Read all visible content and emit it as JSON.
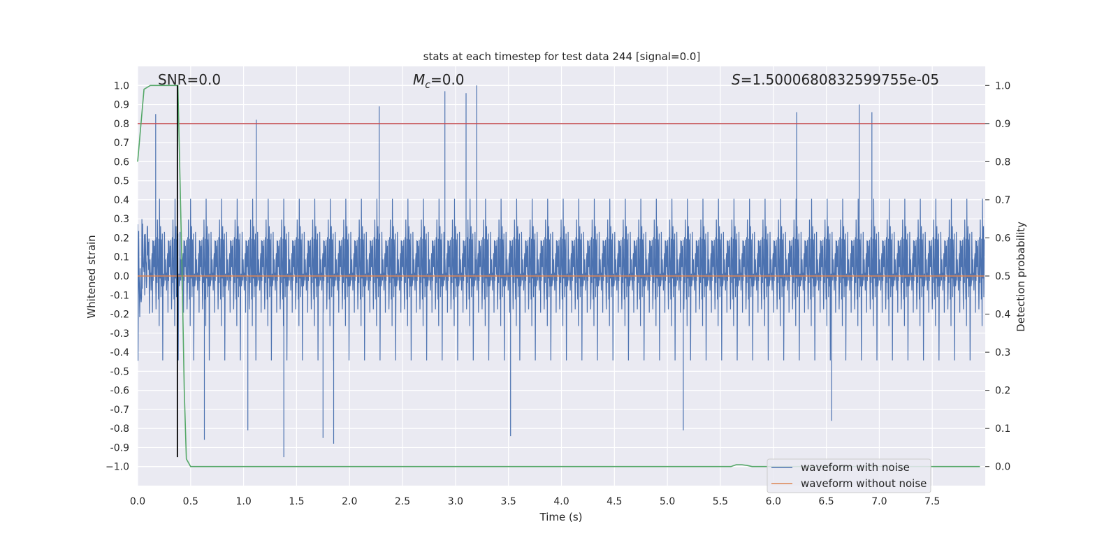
{
  "chart_data": {
    "type": "line",
    "title": "stats at each timestep for test data 244 [signal=0.0]",
    "xlabel": "Time (s)",
    "ylabel": "Whitened strain",
    "y2label": "Detection probability",
    "xlim": [
      0.0,
      8.0
    ],
    "ylim": [
      -1.1,
      1.1
    ],
    "y2lim": [
      -0.05,
      1.05
    ],
    "x_ticks": [
      0.0,
      0.5,
      1.0,
      1.5,
      2.0,
      2.5,
      3.0,
      3.5,
      4.0,
      4.5,
      5.0,
      5.5,
      6.0,
      6.5,
      7.0,
      7.5
    ],
    "x_tick_labels": [
      "0.0",
      "0.5",
      "1.0",
      "1.5",
      "2.0",
      "2.5",
      "3.0",
      "3.5",
      "4.0",
      "4.5",
      "5.0",
      "5.5",
      "6.0",
      "6.5",
      "7.0",
      "7.5"
    ],
    "y_ticks": [
      1.0,
      0.9,
      0.8,
      0.7,
      0.6,
      0.5,
      0.4,
      0.3,
      0.2,
      0.1,
      0.0,
      -0.1,
      -0.2,
      -0.3,
      -0.4,
      -0.5,
      -0.6,
      -0.7,
      -0.8,
      -0.9,
      -1.0
    ],
    "y_tick_labels": [
      "1.0",
      "0.9",
      "0.8",
      "0.7",
      "0.6",
      "0.5",
      "0.4",
      "0.3",
      "0.2",
      "0.1",
      "0.0",
      "-0.1",
      "-0.2",
      "-0.3",
      "-0.4",
      "-0.5",
      "-0.6",
      "-0.7",
      "-0.8",
      "-0.9",
      "−1.0"
    ],
    "y2_ticks": [
      1.0,
      0.9,
      0.8,
      0.7,
      0.6,
      0.5,
      0.4,
      0.3,
      0.2,
      0.1,
      0.0
    ],
    "y2_tick_labels": [
      "1.0",
      "0.9",
      "0.8",
      "0.7",
      "0.6",
      "0.5",
      "0.4",
      "0.3",
      "0.2",
      "0.1",
      "0.0"
    ],
    "annotations": {
      "snr": "SNR=0.0",
      "mc_symbol": "M",
      "mc_sub": "c",
      "mc_value": "=0.0",
      "s_symbol": "S",
      "s_value": "=1.5000680832599755e-05"
    },
    "threshold_line": {
      "axis": "y2",
      "value": 0.9,
      "color": "#c44e52"
    },
    "marker_vline": {
      "x": 0.375,
      "y_from": -0.95,
      "y_to": 1.0,
      "color": "#000000"
    },
    "series": [
      {
        "name": "waveform with noise",
        "color": "#4c72b0",
        "axis": "y",
        "description": "dense noise 0 to 8 s, mostly within ±0.3, spikes to ~+1.0 and ~-0.95",
        "spikes": [
          {
            "x": 0.17,
            "y": 0.85
          },
          {
            "x": 1.12,
            "y": 0.82
          },
          {
            "x": 2.28,
            "y": 0.89
          },
          {
            "x": 2.9,
            "y": 0.97
          },
          {
            "x": 3.1,
            "y": 0.96
          },
          {
            "x": 3.2,
            "y": 1.0
          },
          {
            "x": 6.22,
            "y": 0.86
          },
          {
            "x": 6.81,
            "y": 0.9
          },
          {
            "x": 6.93,
            "y": 0.86
          },
          {
            "x": 1.38,
            "y": -0.95
          },
          {
            "x": 1.75,
            "y": -0.85
          },
          {
            "x": 1.85,
            "y": -0.88
          },
          {
            "x": 3.52,
            "y": -0.84
          },
          {
            "x": 5.15,
            "y": -0.81
          },
          {
            "x": 6.55,
            "y": -0.76
          },
          {
            "x": 0.63,
            "y": -0.86
          },
          {
            "x": 1.04,
            "y": -0.81
          }
        ]
      },
      {
        "name": "waveform without noise",
        "color": "#dd8452",
        "axis": "y",
        "x": [
          0.0,
          8.0
        ],
        "y": [
          0.0,
          0.0
        ]
      },
      {
        "name": "detection probability",
        "color": "#55a868",
        "axis": "y2",
        "x": [
          0.0,
          0.06,
          0.12,
          0.2,
          0.28,
          0.36,
          0.38,
          0.42,
          0.44,
          0.46,
          0.5,
          1.0,
          2.0,
          3.0,
          4.0,
          5.0,
          5.6,
          5.65,
          5.7,
          5.75,
          5.8,
          6.0,
          7.0,
          7.95
        ],
        "y": [
          0.8,
          0.99,
          1.0,
          1.0,
          1.0,
          1.0,
          1.0,
          0.5,
          0.2,
          0.02,
          0.0,
          0.0,
          0.0,
          0.0,
          0.0,
          0.0,
          0.0,
          0.005,
          0.005,
          0.003,
          0.0,
          0.0,
          0.0,
          0.0
        ]
      }
    ],
    "legend": {
      "placement": "lower-right",
      "entries": [
        {
          "label": "waveform with noise",
          "color": "#4c72b0"
        },
        {
          "label": "waveform without noise",
          "color": "#dd8452"
        }
      ]
    }
  }
}
